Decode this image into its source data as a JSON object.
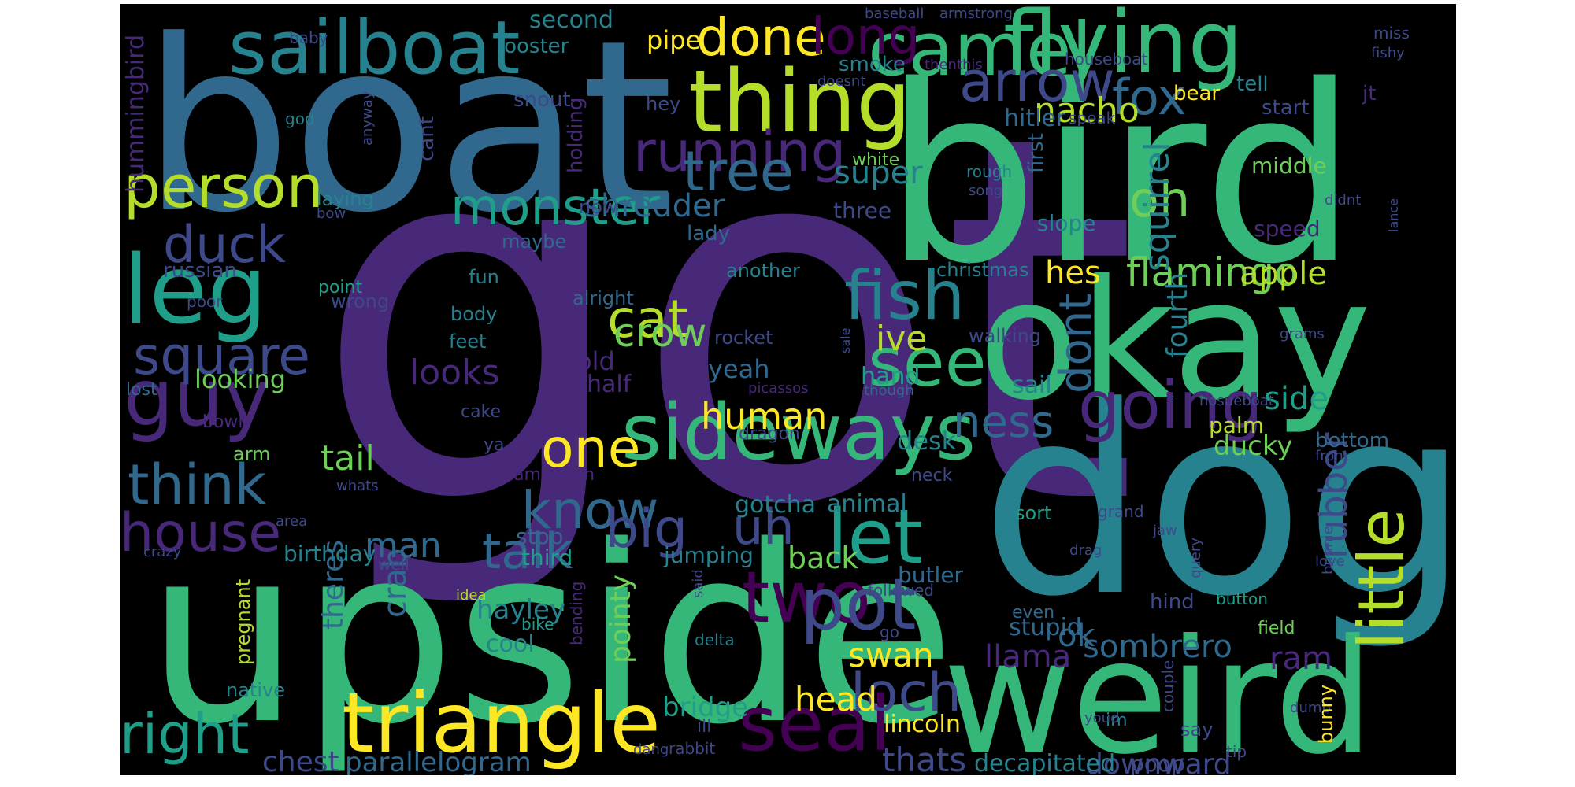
{
  "palette": {
    "background": "#000000",
    "page": "#ffffff",
    "viridis": [
      "#440154",
      "#482878",
      "#3e4989",
      "#31688e",
      "#26828e",
      "#1f9e89",
      "#35b779",
      "#6ece58",
      "#b5de2b",
      "#fde725"
    ]
  },
  "words": [
    {
      "text": "got",
      "color": "#482878"
    },
    {
      "text": "boat",
      "color": "#31688e"
    },
    {
      "text": "bird",
      "color": "#35b779"
    },
    {
      "text": "dog",
      "color": "#26828e"
    },
    {
      "text": "upside",
      "color": "#35b779"
    },
    {
      "text": "okay",
      "color": "#35b779"
    },
    {
      "text": "weird",
      "color": "#35b779"
    },
    {
      "text": "flying",
      "color": "#35b779"
    },
    {
      "text": "thing",
      "color": "#b5de2b"
    },
    {
      "text": "sailboat",
      "color": "#26828e"
    },
    {
      "text": "camel",
      "color": "#35b779"
    },
    {
      "text": "triangle",
      "color": "#fde725"
    },
    {
      "text": "sideways",
      "color": "#35b779"
    },
    {
      "text": "leg",
      "color": "#1f9e89"
    },
    {
      "text": "guy",
      "color": "#482878"
    },
    {
      "text": "person",
      "color": "#b5de2b"
    },
    {
      "text": "seal",
      "color": "#440154"
    },
    {
      "text": "two",
      "color": "#440154"
    },
    {
      "text": "pot",
      "color": "#3e4989"
    },
    {
      "text": "let",
      "color": "#1f9e89"
    },
    {
      "text": "little",
      "color": "#b5de2b"
    },
    {
      "text": "fish",
      "color": "#26828e"
    },
    {
      "text": "see",
      "color": "#35b779"
    },
    {
      "text": "going",
      "color": "#482878"
    },
    {
      "text": "running",
      "color": "#482878"
    },
    {
      "text": "tree",
      "color": "#31688e"
    },
    {
      "text": "arrow",
      "color": "#3e4989"
    },
    {
      "text": "fox",
      "color": "#31688e"
    },
    {
      "text": "square",
      "color": "#3e4989"
    },
    {
      "text": "duck",
      "color": "#3e4989"
    },
    {
      "text": "think",
      "color": "#31688e"
    },
    {
      "text": "house",
      "color": "#482878"
    },
    {
      "text": "right",
      "color": "#1f9e89"
    },
    {
      "text": "monster",
      "color": "#1f9e89"
    },
    {
      "text": "one",
      "color": "#fde725"
    },
    {
      "text": "know",
      "color": "#31688e"
    },
    {
      "text": "talk",
      "color": "#31688e"
    },
    {
      "text": "big",
      "color": "#3e4989"
    },
    {
      "text": "uh",
      "color": "#3e4989"
    },
    {
      "text": "loch",
      "color": "#3e4989"
    },
    {
      "text": "oh",
      "color": "#6ece58"
    },
    {
      "text": "cat",
      "color": "#b5de2b"
    },
    {
      "text": "crow",
      "color": "#6ece58"
    },
    {
      "text": "done",
      "color": "#fde725"
    },
    {
      "text": "long",
      "color": "#440154"
    },
    {
      "text": "dont",
      "color": "#31688e"
    },
    {
      "text": "ness",
      "color": "#31688e"
    },
    {
      "text": "rubber",
      "color": "#3e4989"
    },
    {
      "text": "flamingo",
      "color": "#6ece58"
    },
    {
      "text": "squirrel",
      "color": "#26828e"
    },
    {
      "text": "nacho",
      "color": "#b5de2b"
    },
    {
      "text": "human",
      "color": "#fde725"
    },
    {
      "text": "tail",
      "color": "#6ece58"
    },
    {
      "text": "man",
      "color": "#31688e"
    },
    {
      "text": "looks",
      "color": "#482878"
    },
    {
      "text": "shredder",
      "color": "#31688e"
    },
    {
      "text": "super",
      "color": "#26828e"
    },
    {
      "text": "apple",
      "color": "#b5de2b"
    },
    {
      "text": "hes",
      "color": "#fde725"
    },
    {
      "text": "ive",
      "color": "#b5de2b"
    },
    {
      "text": "back",
      "color": "#6ece58"
    },
    {
      "text": "swan",
      "color": "#fde725"
    },
    {
      "text": "head",
      "color": "#fde725"
    },
    {
      "text": "sombrero",
      "color": "#31688e"
    },
    {
      "text": "ok",
      "color": "#31688e"
    },
    {
      "text": "llama",
      "color": "#482878"
    },
    {
      "text": "thats",
      "color": "#3e4989"
    },
    {
      "text": "downward",
      "color": "#3e4989"
    },
    {
      "text": "ducky",
      "color": "#6ece58"
    },
    {
      "text": "side",
      "color": "#1f9e89"
    },
    {
      "text": "ram",
      "color": "#482878"
    },
    {
      "text": "chest",
      "color": "#3e4989"
    },
    {
      "text": "parallelogram",
      "color": "#31688e"
    },
    {
      "text": "bridge",
      "color": "#1f9e89"
    },
    {
      "text": "crab",
      "color": "#31688e"
    },
    {
      "text": "pointy",
      "color": "#6ece58"
    },
    {
      "text": "theres",
      "color": "#31688e"
    },
    {
      "text": "hayley",
      "color": "#26828e"
    },
    {
      "text": "cool",
      "color": "#26828e"
    },
    {
      "text": "stupid",
      "color": "#31688e"
    },
    {
      "text": "desk",
      "color": "#26828e"
    },
    {
      "text": "animal",
      "color": "#26828e"
    },
    {
      "text": "gotcha",
      "color": "#26828e"
    },
    {
      "text": "lincoln",
      "color": "#fde725"
    },
    {
      "text": "decapitated",
      "color": "#26828e"
    },
    {
      "text": "poop",
      "color": "#3e4989"
    },
    {
      "text": "yeah",
      "color": "#31688e"
    },
    {
      "text": "hand",
      "color": "#1f9e89"
    },
    {
      "text": "looking",
      "color": "#6ece58"
    },
    {
      "text": "old",
      "color": "#482878"
    },
    {
      "text": "half",
      "color": "#482878"
    },
    {
      "text": "birthday",
      "color": "#26828e"
    },
    {
      "text": "jumping",
      "color": "#26828e"
    },
    {
      "text": "third",
      "color": "#1f9e89"
    },
    {
      "text": "stop",
      "color": "#31688e"
    },
    {
      "text": "butler",
      "color": "#31688e"
    },
    {
      "text": "sail",
      "color": "#26828e"
    },
    {
      "text": "palm",
      "color": "#b5de2b"
    },
    {
      "text": "bottom",
      "color": "#31688e"
    },
    {
      "text": "middle",
      "color": "#6ece58"
    },
    {
      "text": "speed",
      "color": "#482878"
    },
    {
      "text": "fourth",
      "color": "#26828e"
    },
    {
      "text": "slope",
      "color": "#26828e"
    },
    {
      "text": "first",
      "color": "#31688e"
    },
    {
      "text": "hitler",
      "color": "#31688e"
    },
    {
      "text": "speak",
      "color": "#3e4989"
    },
    {
      "text": "bear",
      "color": "#fde725"
    },
    {
      "text": "start",
      "color": "#3e4989"
    },
    {
      "text": "tell",
      "color": "#26828e"
    },
    {
      "text": "jt",
      "color": "#482878"
    },
    {
      "text": "pipe",
      "color": "#fde725"
    },
    {
      "text": "second",
      "color": "#26828e"
    },
    {
      "text": "rooster",
      "color": "#26828e"
    },
    {
      "text": "smoke",
      "color": "#26828e"
    },
    {
      "text": "hey",
      "color": "#3e4989"
    },
    {
      "text": "snout",
      "color": "#3e4989"
    },
    {
      "text": "hummingbird",
      "color": "#482878"
    },
    {
      "text": "holding",
      "color": "#482878"
    },
    {
      "text": "cant",
      "color": "#3e4989"
    },
    {
      "text": "laying",
      "color": "#26828e"
    },
    {
      "text": "now",
      "color": "#3e4989"
    },
    {
      "text": "lady",
      "color": "#31688e"
    },
    {
      "text": "maybe",
      "color": "#31688e"
    },
    {
      "text": "three",
      "color": "#3e4989"
    },
    {
      "text": "white",
      "color": "#6ece58"
    },
    {
      "text": "rough",
      "color": "#26828e"
    },
    {
      "text": "song",
      "color": "#3e4989"
    },
    {
      "text": "russian",
      "color": "#3e4989"
    },
    {
      "text": "point",
      "color": "#1f9e89"
    },
    {
      "text": "wrong",
      "color": "#3e4989"
    },
    {
      "text": "alright",
      "color": "#31688e"
    },
    {
      "text": "another",
      "color": "#26828e"
    },
    {
      "text": "christmas",
      "color": "#26828e"
    },
    {
      "text": "fun",
      "color": "#26828e"
    },
    {
      "text": "body",
      "color": "#26828e"
    },
    {
      "text": "feet",
      "color": "#26828e"
    },
    {
      "text": "rocket",
      "color": "#3e4989"
    },
    {
      "text": "walking",
      "color": "#3e4989"
    },
    {
      "text": "poor",
      "color": "#3e4989"
    },
    {
      "text": "lost",
      "color": "#31688e"
    },
    {
      "text": "bowl",
      "color": "#482878"
    },
    {
      "text": "arm",
      "color": "#6ece58"
    },
    {
      "text": "cake",
      "color": "#3e4989"
    },
    {
      "text": "ya",
      "color": "#3e4989"
    },
    {
      "text": "dragon",
      "color": "#3e4989"
    },
    {
      "text": "american",
      "color": "#482878"
    },
    {
      "text": "whats",
      "color": "#3e4989"
    },
    {
      "text": "neck",
      "color": "#3e4989"
    },
    {
      "text": "area",
      "color": "#3e4989"
    },
    {
      "text": "crazy",
      "color": "#3e4989"
    },
    {
      "text": "well",
      "color": "#3e4989"
    },
    {
      "text": "idea",
      "color": "#b5de2b"
    },
    {
      "text": "bending",
      "color": "#482878"
    },
    {
      "text": "bike",
      "color": "#1f9e89"
    },
    {
      "text": "said",
      "color": "#3e4989"
    },
    {
      "text": "delta",
      "color": "#26828e"
    },
    {
      "text": "followed",
      "color": "#3e4989"
    },
    {
      "text": "go",
      "color": "#3e4989"
    },
    {
      "text": "even",
      "color": "#31688e"
    },
    {
      "text": "drag",
      "color": "#3e4989"
    },
    {
      "text": "hind",
      "color": "#3e4989"
    },
    {
      "text": "field",
      "color": "#6ece58"
    },
    {
      "text": "button",
      "color": "#1f9e89"
    },
    {
      "text": "grand",
      "color": "#3e4989"
    },
    {
      "text": "jaw",
      "color": "#3e4989"
    },
    {
      "text": "query",
      "color": "#3e4989"
    },
    {
      "text": "couple",
      "color": "#3e4989"
    },
    {
      "text": "dumb",
      "color": "#3e4989"
    },
    {
      "text": "bunny",
      "color": "#fde725"
    },
    {
      "text": "say",
      "color": "#3e4989"
    },
    {
      "text": "im",
      "color": "#26828e"
    },
    {
      "text": "youd",
      "color": "#3e4989"
    },
    {
      "text": "dang",
      "color": "#3e4989"
    },
    {
      "text": "rabbit",
      "color": "#3e4989"
    },
    {
      "text": "ill",
      "color": "#3e4989"
    },
    {
      "text": "native",
      "color": "#26828e"
    },
    {
      "text": "pregnant",
      "color": "#b5de2b"
    },
    {
      "text": "tip",
      "color": "#3e4989"
    },
    {
      "text": "sort",
      "color": "#1f9e89"
    },
    {
      "text": "love",
      "color": "#3e4989"
    },
    {
      "text": "bunnie",
      "color": "#3e4989"
    },
    {
      "text": "front",
      "color": "#3e4989"
    },
    {
      "text": "hosueboat",
      "color": "#3e4989"
    },
    {
      "text": "though",
      "color": "#31688e"
    },
    {
      "text": "picassos",
      "color": "#482878"
    },
    {
      "text": "sale",
      "color": "#3e4989"
    },
    {
      "text": "grams",
      "color": "#3e4989"
    },
    {
      "text": "didnt",
      "color": "#3e4989"
    },
    {
      "text": "lance",
      "color": "#3e4989"
    },
    {
      "text": "houseboat",
      "color": "#3e4989"
    },
    {
      "text": "thenthis",
      "color": "#482878"
    },
    {
      "text": "doesnt",
      "color": "#3e4989"
    },
    {
      "text": "baseball",
      "color": "#3e4989"
    },
    {
      "text": "armstrong",
      "color": "#3e4989"
    },
    {
      "text": "miss",
      "color": "#3e4989"
    },
    {
      "text": "fishy",
      "color": "#3e4989"
    },
    {
      "text": "baby",
      "color": "#3e4989"
    },
    {
      "text": "god",
      "color": "#26828e"
    },
    {
      "text": "anyway",
      "color": "#3e4989"
    },
    {
      "text": "bow",
      "color": "#3e4989"
    }
  ]
}
